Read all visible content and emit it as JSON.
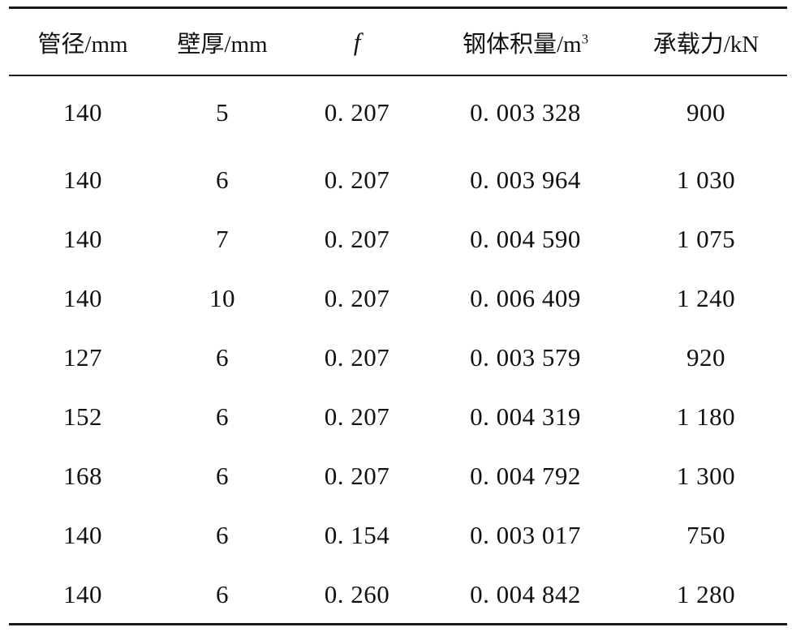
{
  "table": {
    "headers": [
      {
        "label": "管径/mm"
      },
      {
        "label": "壁厚/mm"
      },
      {
        "label": "f"
      },
      {
        "label": "钢体积量/m",
        "superscript": "3"
      },
      {
        "label": "承载力/kN"
      }
    ],
    "rows": [
      [
        "140",
        "5",
        "0. 207",
        "0. 003 328",
        "900"
      ],
      [
        "140",
        "6",
        "0. 207",
        "0. 003 964",
        "1 030"
      ],
      [
        "140",
        "7",
        "0. 207",
        "0. 004 590",
        "1 075"
      ],
      [
        "140",
        "10",
        "0. 207",
        "0. 006 409",
        "1 240"
      ],
      [
        "127",
        "6",
        "0. 207",
        "0. 003 579",
        "920"
      ],
      [
        "152",
        "6",
        "0. 207",
        "0. 004 319",
        "1 180"
      ],
      [
        "168",
        "6",
        "0. 207",
        "0. 004 792",
        "1 300"
      ],
      [
        "140",
        "6",
        "0. 154",
        "0. 003 017",
        "750"
      ],
      [
        "140",
        "6",
        "0. 260",
        "0. 004 842",
        "1 280"
      ]
    ]
  }
}
